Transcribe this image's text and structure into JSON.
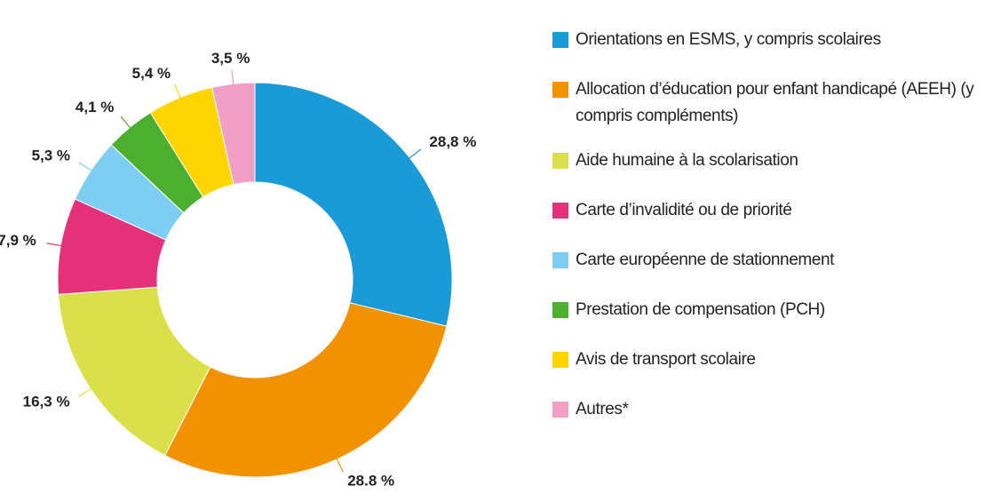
{
  "chart_data": {
    "type": "donut",
    "categories": [
      "Orientations en ESMS, y compris scolaires",
      "Allocation d’éducation pour enfant handicapé (AEEH) (y compris compléments)",
      "Aide humaine à la scolarisation",
      "Carte d’invalidité ou de priorité",
      "Carte européenne de stationnement",
      "Prestation de compensation (PCH)",
      "Avis de transport scolaire",
      "Autres*"
    ],
    "values": [
      28.8,
      28.8,
      16.3,
      7.9,
      5.3,
      4.1,
      5.4,
      3.5
    ],
    "value_labels": [
      "28,8 %",
      "28.8 %",
      "16,3 %",
      "7,9 %",
      "5,3 %",
      "4,1 %",
      "5,4 %",
      "3,5 %"
    ],
    "colors": [
      "#1a9ad6",
      "#f39200",
      "#d9e04a",
      "#e5317a",
      "#7ecef3",
      "#4caf2e",
      "#ffd500",
      "#f29fc5"
    ],
    "legend": "right"
  }
}
